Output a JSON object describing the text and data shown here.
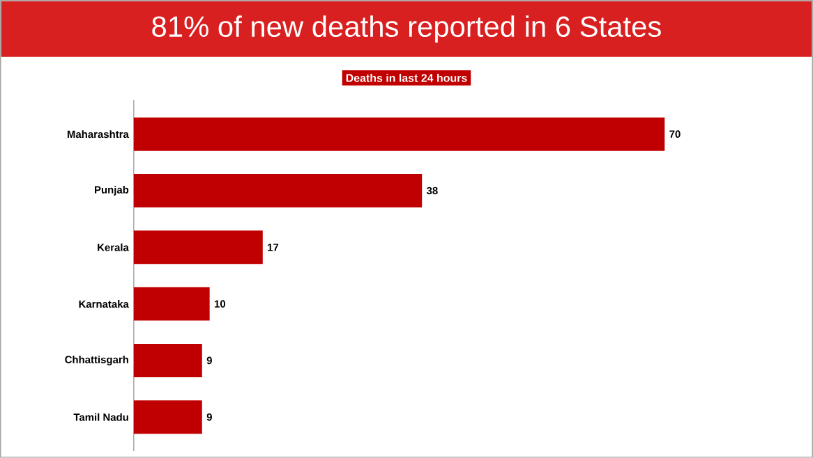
{
  "chart_data": {
    "type": "bar",
    "orientation": "horizontal",
    "title": "81% of new deaths reported in 6 States",
    "subtitle": "Deaths in last 24 hours",
    "categories": [
      "Maharashtra",
      "Punjab",
      "Kerala",
      "Karnataka",
      "Chhattisgarh",
      "Tamil Nadu"
    ],
    "values": [
      70,
      38,
      17,
      10,
      9,
      9
    ],
    "color": "#c00000",
    "data_labels": true
  }
}
